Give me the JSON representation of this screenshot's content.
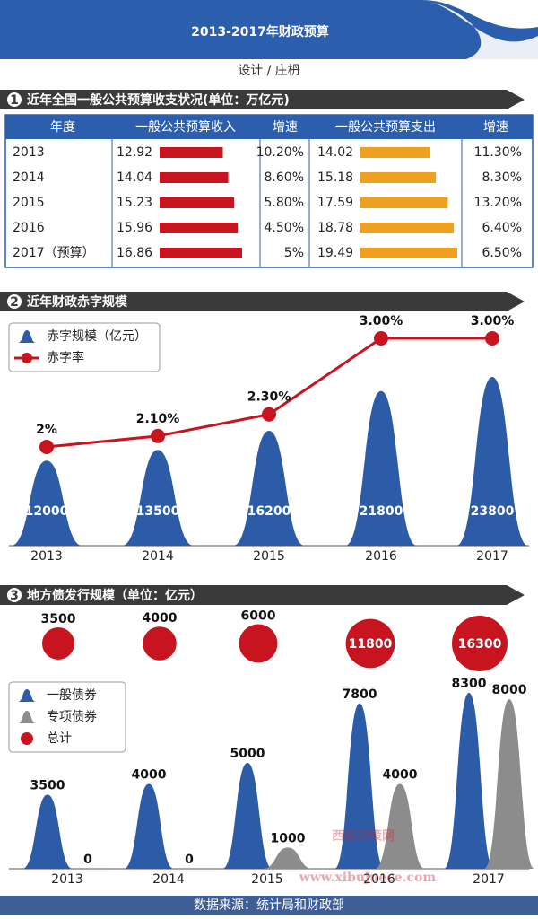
{
  "title": "2013-2017年财政预算",
  "credit": "设计 / 庄枬",
  "table": {
    "number": "1",
    "title": "近年全国一般公共预算收支状况(单位：万亿元)",
    "income_color": "#c8141e",
    "expense_color": "#f0a020",
    "columns": [
      "年度",
      "一般公共预算收入",
      "增速",
      "一般公共预算支出",
      "增速"
    ],
    "rows": [
      [
        "2013",
        12.92,
        "10.20%",
        14.02,
        "11.30%"
      ],
      [
        "2014",
        14.04,
        "8.60%",
        15.18,
        "8.30%"
      ],
      [
        "2015",
        15.23,
        "5.80%",
        17.59,
        "13.20%"
      ],
      [
        "2016",
        15.96,
        "4.50%",
        18.78,
        "6.40%"
      ],
      [
        "2017（预算）",
        16.86,
        "5%",
        19.49,
        "6.50%"
      ]
    ]
  },
  "chart_data": [
    {
      "type": "combo",
      "number": "2",
      "title": "近年财政赤字规模",
      "categories": [
        "2013",
        "2014",
        "2015",
        "2016",
        "2017"
      ],
      "series": [
        {
          "name": "赤字规模（亿元）",
          "type": "bell",
          "color": "#2c5ba8",
          "values": [
            12000,
            13500,
            16200,
            21800,
            23800
          ]
        },
        {
          "name": "赤字率",
          "type": "line",
          "color": "#c8141e",
          "values": [
            2,
            2.1,
            2.3,
            3,
            3
          ],
          "value_labels": [
            "2%",
            "2.10%",
            "2.30%",
            "3.00%",
            "3.00%"
          ]
        }
      ]
    },
    {
      "type": "combo",
      "number": "3",
      "title": "地方债发行规模（单位：亿元）",
      "categories": [
        "2013",
        "2014",
        "2015",
        "2016",
        "2017"
      ],
      "series": [
        {
          "name": "一般债券",
          "type": "bell",
          "color": "#2c5ba8",
          "values": [
            3500,
            4000,
            5000,
            7800,
            8300
          ]
        },
        {
          "name": "专项债券",
          "type": "bell",
          "color": "#8c8c8c",
          "values": [
            0,
            0,
            1000,
            4000,
            8000
          ]
        },
        {
          "name": "总计",
          "type": "circle",
          "color": "#c8141e",
          "values": [
            3500,
            4000,
            6000,
            11800,
            16300
          ]
        }
      ]
    }
  ],
  "source": "数据来源：统计局和财政部",
  "watermark": "西部决策网",
  "watermark_url": "www.xibujuece.com"
}
